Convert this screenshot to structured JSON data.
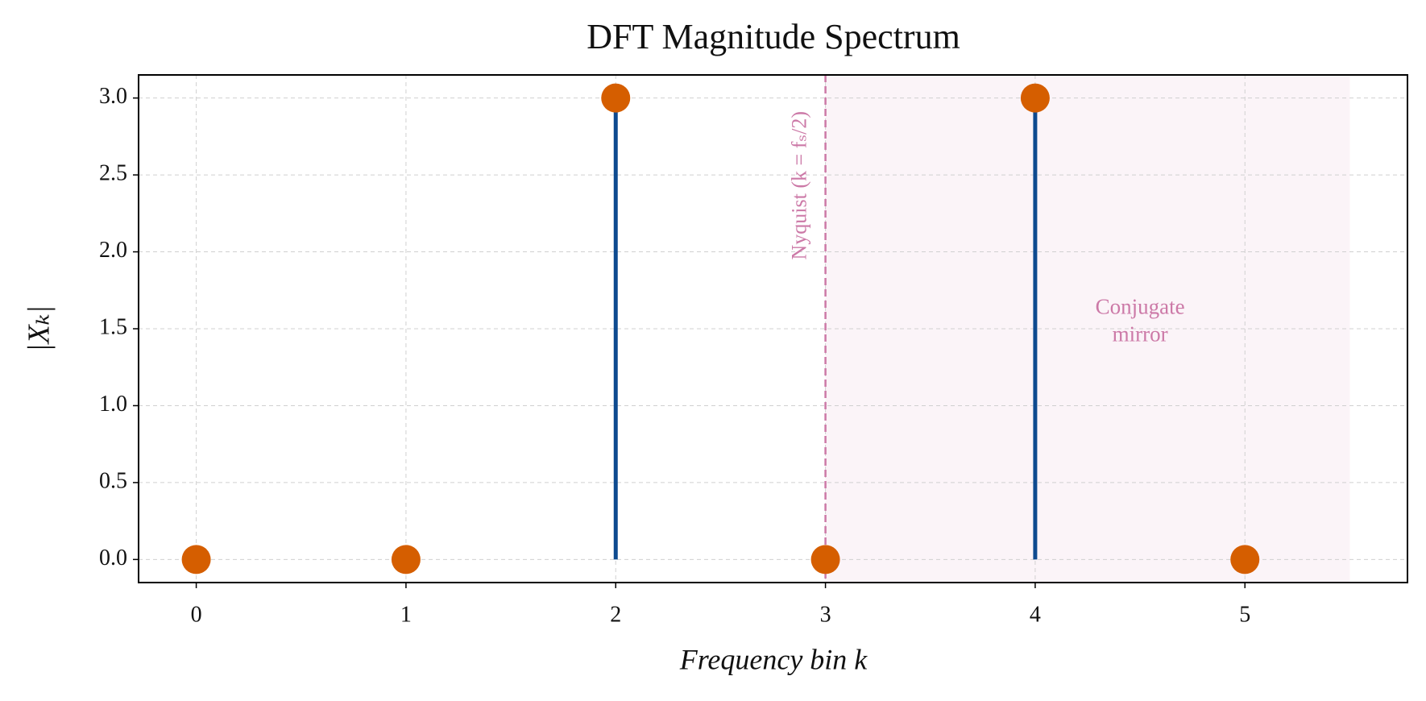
{
  "chart_data": {
    "type": "stem",
    "title": "DFT Magnitude Spectrum",
    "x_label": "Frequency bin k",
    "y_label": "|Xₖ|",
    "x": [
      0,
      1,
      2,
      3,
      4,
      5
    ],
    "values": [
      0,
      0,
      3,
      0,
      3,
      0
    ],
    "stem_color": "#0d4a8f",
    "marker_color": "#d55e00",
    "xlim": [
      -0.275,
      5.775
    ],
    "ylim": [
      -0.15,
      3.15
    ],
    "xticks": [
      0,
      1,
      2,
      3,
      4,
      5
    ],
    "yticks": [
      {
        "value": 0,
        "label": "0.0"
      },
      0.5,
      {
        "value": 1,
        "label": "1.0"
      },
      1.5,
      {
        "value": 2,
        "label": "2.0"
      },
      2.5,
      {
        "value": 3,
        "label": "3.0"
      }
    ],
    "grid": true,
    "nyquist": 3,
    "nyquist_label": "Nyquist (k = fₛ/2)",
    "nyquist_color": "#cc79a7",
    "mirror_region": [
      3,
      5.5
    ],
    "mirror_label": [
      "Conjugate",
      "mirror"
    ]
  }
}
